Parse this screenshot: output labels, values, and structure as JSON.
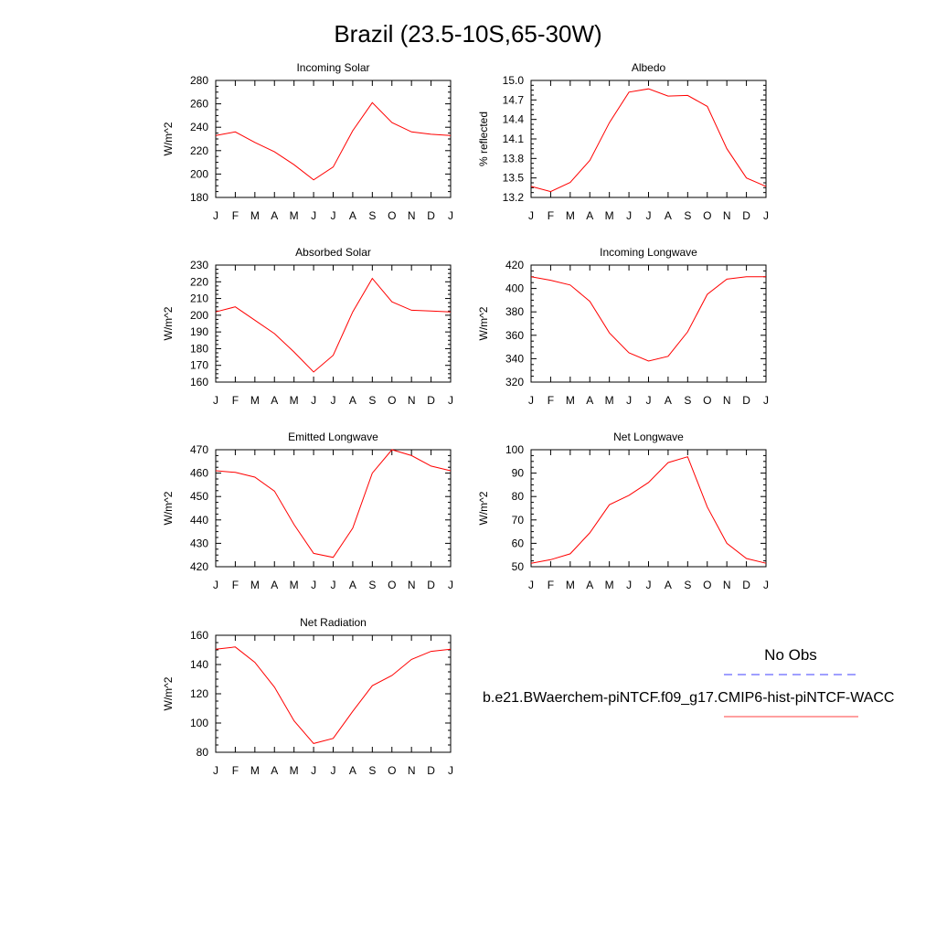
{
  "title": "Brazil (23.5-10S,65-30W)",
  "months": [
    "J",
    "F",
    "M",
    "A",
    "M",
    "J",
    "J",
    "A",
    "S",
    "O",
    "N",
    "D",
    "J"
  ],
  "colors": {
    "model_line": "#ff0000",
    "obs_line": "#0000ff",
    "axes": "#000000"
  },
  "chart_data": [
    {
      "type": "line",
      "title": "Incoming Solar",
      "ylabel": "W/m^2",
      "ylim": [
        180,
        280
      ],
      "yticks": [
        180,
        200,
        220,
        240,
        260,
        280
      ],
      "x": [
        "J",
        "F",
        "M",
        "A",
        "M",
        "J",
        "J",
        "A",
        "S",
        "O",
        "N",
        "D",
        "J"
      ],
      "values": [
        233,
        236,
        227,
        219,
        208,
        195,
        206,
        237,
        261,
        244,
        236,
        234,
        233
      ]
    },
    {
      "type": "line",
      "title": "Albedo",
      "ylabel": "% reflected",
      "ylim": [
        13.2,
        15.0
      ],
      "yticks": [
        "13.2",
        "13.5",
        "13.8",
        "14.1",
        "14.4",
        "14.7",
        "15.0"
      ],
      "x": [
        "J",
        "F",
        "M",
        "A",
        "M",
        "J",
        "J",
        "A",
        "S",
        "O",
        "N",
        "D",
        "J"
      ],
      "values": [
        13.37,
        13.29,
        13.43,
        13.77,
        14.35,
        14.82,
        14.87,
        14.76,
        14.77,
        14.6,
        13.95,
        13.5,
        13.37
      ]
    },
    {
      "type": "line",
      "title": "Absorbed Solar",
      "ylabel": "W/m^2",
      "ylim": [
        160,
        230
      ],
      "yticks": [
        160,
        170,
        180,
        190,
        200,
        210,
        220,
        230
      ],
      "x": [
        "J",
        "F",
        "M",
        "A",
        "M",
        "J",
        "J",
        "A",
        "S",
        "O",
        "N",
        "D",
        "J"
      ],
      "values": [
        202,
        205,
        197,
        189,
        178,
        166,
        176,
        202,
        222,
        208,
        203,
        202.5,
        202
      ]
    },
    {
      "type": "line",
      "title": "Incoming Longwave",
      "ylabel": "W/m^2",
      "ylim": [
        320,
        420
      ],
      "yticks": [
        320,
        340,
        360,
        380,
        400,
        420
      ],
      "x": [
        "J",
        "F",
        "M",
        "A",
        "M",
        "J",
        "J",
        "A",
        "S",
        "O",
        "N",
        "D",
        "J"
      ],
      "values": [
        410,
        407,
        403,
        389,
        362,
        345,
        338,
        342,
        363,
        395,
        408,
        410,
        410
      ]
    },
    {
      "type": "line",
      "title": "Emitted Longwave",
      "ylabel": "W/m^2",
      "ylim": [
        420,
        470
      ],
      "yticks": [
        420,
        430,
        440,
        450,
        460,
        470
      ],
      "x": [
        "J",
        "F",
        "M",
        "A",
        "M",
        "J",
        "J",
        "A",
        "S",
        "O",
        "N",
        "D",
        "J"
      ],
      "values": [
        461,
        460.3,
        458.3,
        452.3,
        438,
        425.7,
        424,
        436.5,
        460,
        470,
        467.5,
        463,
        461
      ]
    },
    {
      "type": "line",
      "title": "Net Longwave",
      "ylabel": "W/m^2",
      "ylim": [
        50,
        100
      ],
      "yticks": [
        50,
        60,
        70,
        80,
        90,
        100
      ],
      "x": [
        "J",
        "F",
        "M",
        "A",
        "M",
        "J",
        "J",
        "A",
        "S",
        "O",
        "N",
        "D",
        "J"
      ],
      "values": [
        51.5,
        53,
        55.5,
        64.5,
        76.5,
        80.5,
        86,
        94.5,
        97,
        75.5,
        60,
        53.5,
        51.5
      ]
    },
    {
      "type": "line",
      "title": "Net Radiation",
      "ylabel": "W/m^2",
      "ylim": [
        80,
        160
      ],
      "yticks": [
        80,
        100,
        120,
        140,
        160
      ],
      "x": [
        "J",
        "F",
        "M",
        "A",
        "M",
        "J",
        "J",
        "A",
        "S",
        "O",
        "N",
        "D",
        "J"
      ],
      "values": [
        150.5,
        152,
        141.5,
        124.5,
        101.5,
        86,
        89.5,
        108,
        125.5,
        132.5,
        143.5,
        149,
        150.5
      ]
    }
  ],
  "legend": {
    "obs_label": "No Obs",
    "case_label": "b.e21.BWaerchem-piNTCF.f09_g17.CMIP6-hist-piNTCF-WACC"
  }
}
